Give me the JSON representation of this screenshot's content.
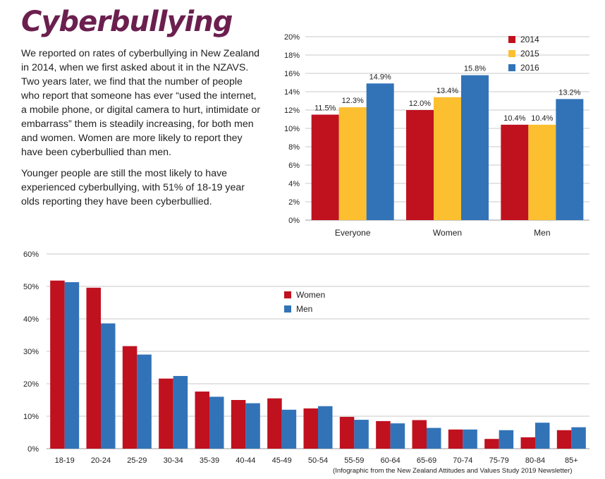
{
  "title": "Cyberbullying",
  "intro": {
    "p1": "We reported on rates of cyberbullying in New Zealand in 2014, when we first asked about it in the NZAVS. Two years later, we find that the number of people who report that someone has ever “used the internet, a mobile phone, or digital camera to hurt, intimidate or embarrass” them is steadily increasing, for both men and women. Women are more likely to report they have been cyberbullied than men.",
    "p2": "Younger people are still the most likely to have experienced cyberbullying, with 51% of 18-19 year olds reporting they have been cyberbullied."
  },
  "footnote": "(Infographic from the New Zealand Attitudes and Values Study 2019 Newsletter)",
  "chart_data": [
    {
      "type": "bar",
      "title": "",
      "xlabel": "",
      "ylabel": "",
      "ylim": [
        0,
        20
      ],
      "yticks": [
        "0%",
        "2%",
        "4%",
        "6%",
        "8%",
        "10%",
        "12%",
        "14%",
        "16%",
        "18%",
        "20%"
      ],
      "grid": true,
      "legend": "top-right",
      "categories": [
        "Everyone",
        "Women",
        "Men"
      ],
      "series": [
        {
          "name": "2014",
          "color": "#c0111f",
          "values": [
            11.5,
            12.0,
            10.4
          ],
          "labels": [
            "11.5%",
            "12.0%",
            "10.4%"
          ]
        },
        {
          "name": "2015",
          "color": "#fbbf2f",
          "values": [
            12.3,
            13.4,
            10.4
          ],
          "labels": [
            "12.3%",
            "13.4%",
            "10.4%"
          ]
        },
        {
          "name": "2016",
          "color": "#3273b8",
          "values": [
            14.9,
            15.8,
            13.2
          ],
          "labels": [
            "14.9%",
            "15.8%",
            "13.2%"
          ]
        }
      ]
    },
    {
      "type": "bar",
      "title": "",
      "xlabel": "",
      "ylabel": "",
      "ylim": [
        0,
        60
      ],
      "yticks": [
        "0%",
        "10%",
        "20%",
        "30%",
        "40%",
        "50%",
        "60%"
      ],
      "grid": true,
      "legend": "top-center",
      "categories": [
        "18-19",
        "20-24",
        "25-29",
        "30-34",
        "35-39",
        "40-44",
        "45-49",
        "50-54",
        "55-59",
        "60-64",
        "65-69",
        "70-74",
        "75-79",
        "80-84",
        "85+"
      ],
      "series": [
        {
          "name": "Women",
          "color": "#c0111f",
          "values": [
            51.8,
            49.6,
            31.6,
            21.6,
            17.6,
            15.0,
            15.5,
            12.4,
            9.8,
            8.5,
            8.8,
            5.9,
            3.0,
            3.5,
            5.7
          ]
        },
        {
          "name": "Men",
          "color": "#3273b8",
          "values": [
            51.3,
            38.6,
            29.0,
            22.4,
            16.0,
            14.0,
            12.0,
            13.1,
            8.9,
            7.8,
            6.4,
            5.9,
            5.7,
            8.0,
            6.6
          ]
        }
      ]
    }
  ]
}
